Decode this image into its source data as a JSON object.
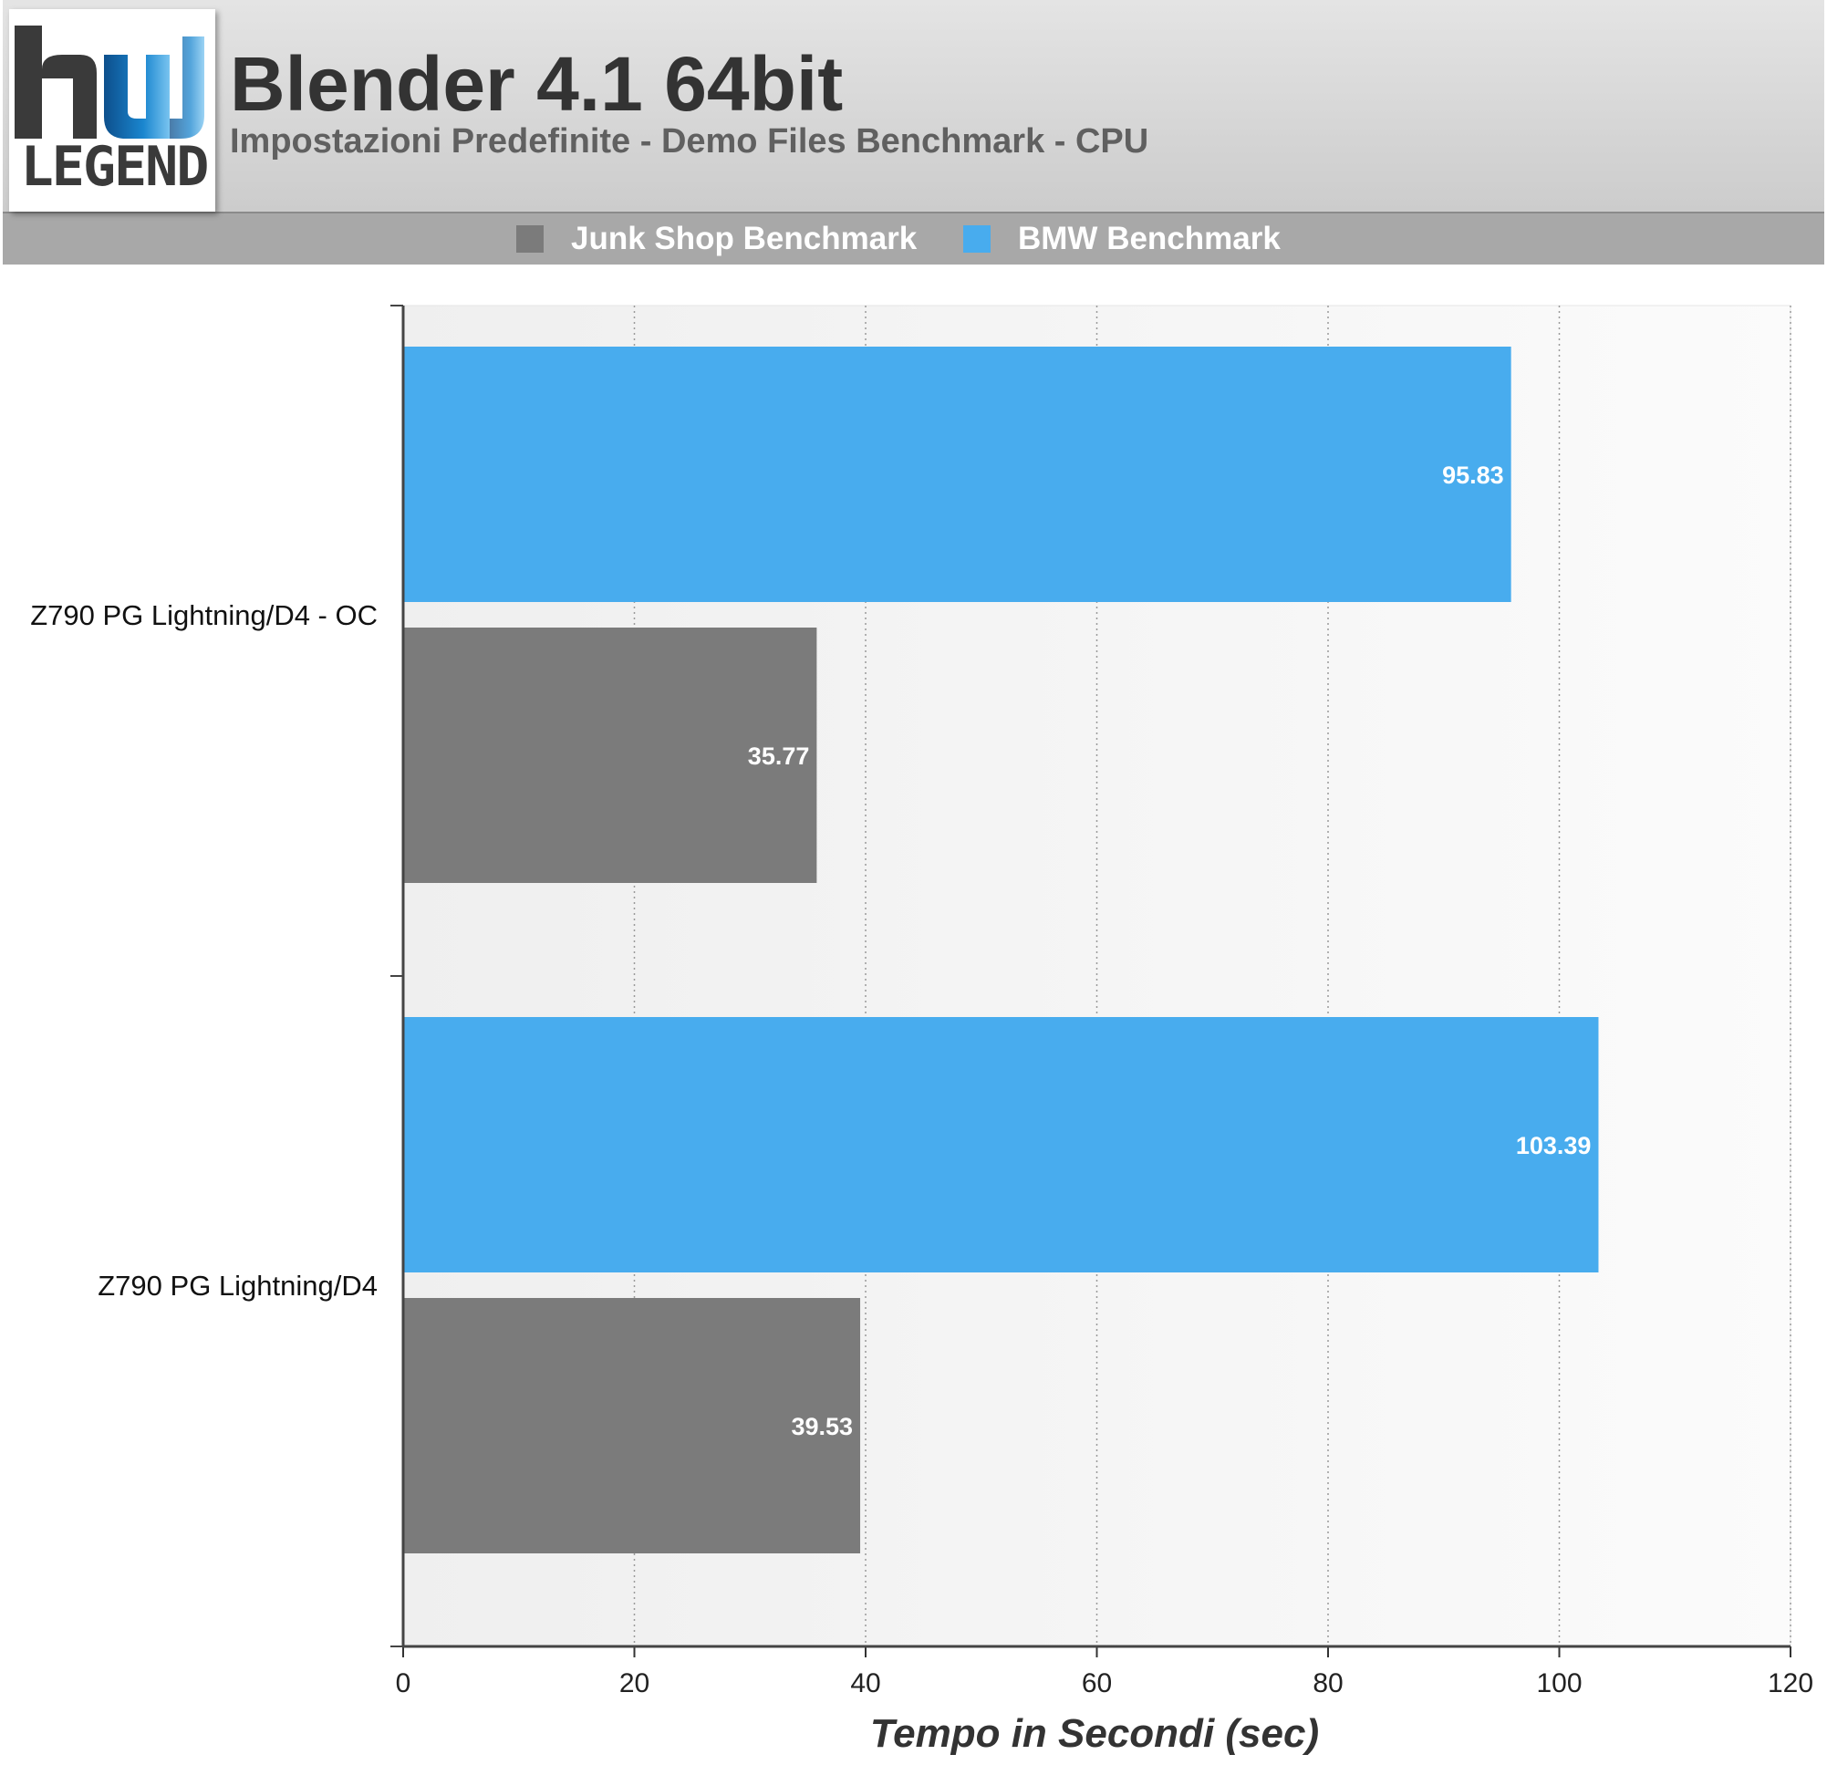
{
  "header": {
    "title": "Blender 4.1 64bit",
    "subtitle": "Impostazioni Predefinite - Demo Files Benchmark - CPU",
    "logo_text": "LEGEND",
    "logo_icon": "hwlegend-logo"
  },
  "legend": {
    "items": [
      {
        "label": "Junk Shop Benchmark",
        "color": "#7b7b7b"
      },
      {
        "label": "BMW Benchmark",
        "color": "#48acee"
      }
    ]
  },
  "chart_data": {
    "type": "bar",
    "orientation": "horizontal",
    "title": "Blender 4.1 64bit",
    "subtitle": "Impostazioni Predefinite - Demo Files Benchmark - CPU",
    "xlabel": "Tempo in Secondi (sec)",
    "ylabel": "",
    "categories": [
      "Z790 PG Lightning/D4 - OC",
      "Z790 PG Lightning/D4"
    ],
    "series": [
      {
        "name": "BMW Benchmark",
        "color": "#48acee",
        "values": [
          95.83,
          103.39
        ],
        "labels": [
          "95.83",
          "103.39"
        ]
      },
      {
        "name": "Junk Shop Benchmark",
        "color": "#7b7b7b",
        "values": [
          35.77,
          39.53
        ],
        "labels": [
          "35.77",
          "39.53"
        ]
      }
    ],
    "xlim": [
      0,
      120
    ],
    "xticks": [
      0,
      20,
      40,
      60,
      80,
      100,
      120
    ],
    "xtick_labels": [
      "0",
      "20",
      "40",
      "60",
      "80",
      "100",
      "120"
    ],
    "grid": "vertical-dotted",
    "legend_position": "top"
  }
}
